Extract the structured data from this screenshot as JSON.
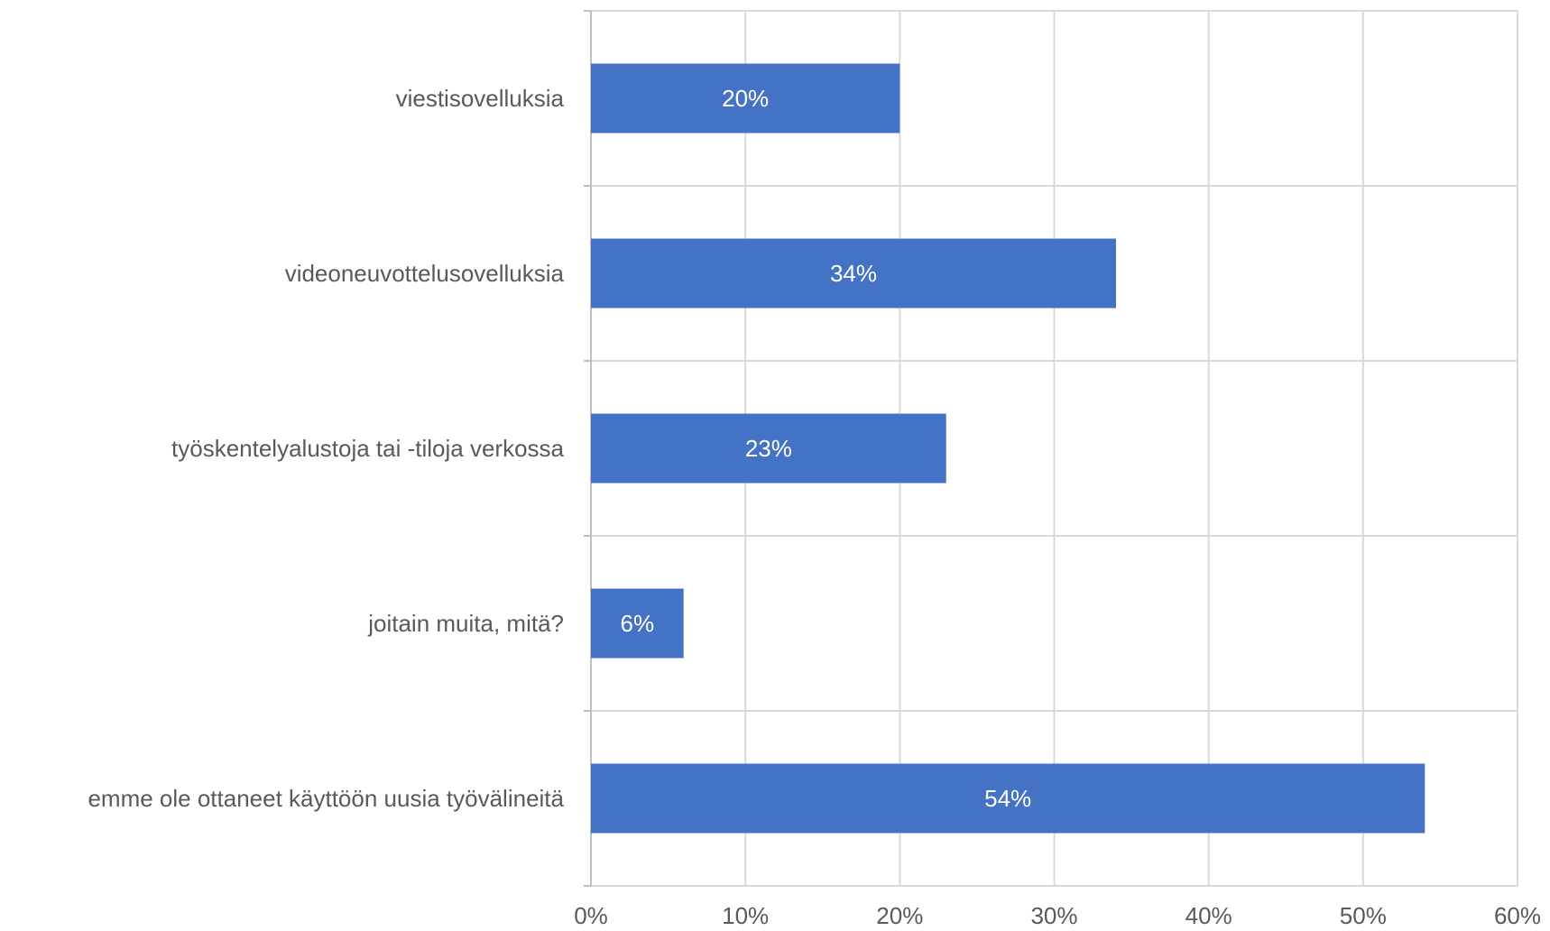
{
  "chart_data": {
    "type": "bar",
    "orientation": "horizontal",
    "categories": [
      "viestisovelluksia",
      "videoneuvottelusovelluksia",
      "työskentelyalustoja tai -tiloja verkossa",
      "joitain muita, mitä?",
      "emme ole ottaneet käyttöön uusia työvälineitä"
    ],
    "values": [
      20,
      34,
      23,
      6,
      54
    ],
    "data_labels": [
      "20%",
      "34%",
      "23%",
      "6%",
      "54%"
    ],
    "x_ticks": [
      0,
      10,
      20,
      30,
      40,
      50,
      60
    ],
    "x_tick_labels": [
      "0%",
      "10%",
      "20%",
      "30%",
      "40%",
      "50%",
      "60%"
    ],
    "xlim": [
      0,
      60
    ],
    "grid": true,
    "legend": "none",
    "colors": {
      "bar": "#4472C4",
      "grid": "#D9D9D9",
      "axis": "#BFBFBF",
      "text": "#595959",
      "data_label": "#FFFFFF"
    }
  }
}
